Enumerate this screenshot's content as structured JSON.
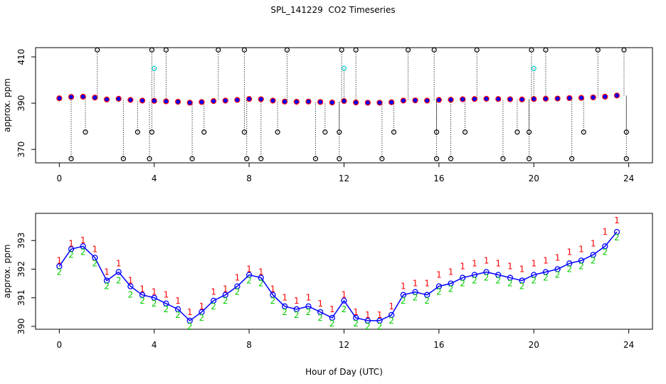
{
  "chart_data": [
    {
      "type": "scatter",
      "title": "SPL_141229  CO2 Timeseries",
      "y_label": "approx. ppm",
      "xlim": [
        -1,
        25
      ],
      "xticks": [
        0,
        4,
        8,
        12,
        16,
        20,
        24
      ],
      "ylim": [
        364.2,
        414
      ],
      "yticks": [
        370,
        390,
        410
      ],
      "x": [
        0,
        0.5,
        1,
        1.5,
        2,
        2.5,
        3,
        3.5,
        4,
        4.5,
        5,
        5.5,
        6,
        6.5,
        7,
        7.5,
        8,
        8.5,
        9,
        9.5,
        10,
        10.5,
        11,
        11.5,
        12,
        12.5,
        13,
        13.5,
        14,
        14.5,
        15,
        15.5,
        16,
        16.5,
        17,
        17.5,
        18,
        18.5,
        19,
        19.5,
        20,
        20.5,
        21,
        21.5,
        22,
        22.5,
        23,
        23.5
      ],
      "series": [
        {
          "color": "#0000ff",
          "edge": "#ff0000",
          "values": [
            392.1,
            392.7,
            392.8,
            392.4,
            391.6,
            391.9,
            391.4,
            391.1,
            391.0,
            390.8,
            390.6,
            390.2,
            390.5,
            390.9,
            391.1,
            391.4,
            391.8,
            391.7,
            391.1,
            390.7,
            390.6,
            390.7,
            390.5,
            390.3,
            390.9,
            390.3,
            390.2,
            390.2,
            390.4,
            391.1,
            391.2,
            391.1,
            391.4,
            391.5,
            391.7,
            391.8,
            391.9,
            391.8,
            391.7,
            391.6,
            391.8,
            391.9,
            392.0,
            392.2,
            392.3,
            392.5,
            392.8,
            393.3
          ]
        },
        {
          "color": "#000000",
          "x": [
            1.6,
            3.9,
            4.5,
            6.7,
            7.8,
            9.6,
            11.9,
            12.5,
            14.7,
            15.8,
            17.6,
            19.9,
            20.5,
            22.7,
            23.8
          ],
          "values": [
            413,
            413,
            413,
            413,
            413,
            413,
            413,
            413,
            413,
            413,
            413,
            413,
            413,
            413,
            413
          ]
        },
        {
          "color": "#000000",
          "x": [
            1.1,
            3.3,
            3.9,
            6.1,
            7.8,
            9.2,
            11.2,
            11.8,
            14.1,
            15.9,
            17.1,
            19.3,
            19.8,
            22.1,
            23.9
          ],
          "values": [
            377.5,
            377.5,
            377.5,
            377.5,
            377.5,
            377.5,
            377.5,
            377.5,
            377.5,
            377.5,
            377.5,
            377.5,
            377.5,
            377.5,
            377.5
          ]
        },
        {
          "color": "#000000",
          "x": [
            0.5,
            2.7,
            3.8,
            5.6,
            7.9,
            8.5,
            10.8,
            11.8,
            13.6,
            15.9,
            16.5,
            18.7,
            19.8,
            21.6,
            23.9
          ],
          "values": [
            366,
            366,
            366,
            366,
            366,
            366,
            366,
            366,
            366,
            366,
            366,
            366,
            366,
            366,
            366
          ]
        },
        {
          "color": "#00cccc",
          "x": [
            4.0,
            12.0,
            20.0
          ],
          "values": [
            405,
            405,
            405
          ]
        }
      ]
    },
    {
      "type": "line",
      "y_label": "approx. ppm",
      "x_label": "Hour of Day (UTC)",
      "xlim": [
        -1,
        25
      ],
      "xticks": [
        0,
        4,
        8,
        12,
        16,
        20,
        24
      ],
      "ylim": [
        389.9,
        393.95
      ],
      "yticks": [
        390,
        391,
        392,
        393
      ],
      "x": [
        0,
        0.5,
        1,
        1.5,
        2,
        2.5,
        3,
        3.5,
        4,
        4.5,
        5,
        5.5,
        6,
        6.5,
        7,
        7.5,
        8,
        8.5,
        9,
        9.5,
        10,
        10.5,
        11,
        11.5,
        12,
        12.5,
        13,
        13.5,
        14,
        14.5,
        15,
        15.5,
        16,
        16.5,
        17,
        17.5,
        18,
        18.5,
        19,
        19.5,
        20,
        20.5,
        21,
        21.5,
        22,
        22.5,
        23,
        23.5
      ],
      "series": [
        {
          "color": "#0000ff",
          "values": [
            392.1,
            392.7,
            392.8,
            392.4,
            391.6,
            391.9,
            391.4,
            391.1,
            391.0,
            390.8,
            390.6,
            390.2,
            390.5,
            390.9,
            391.1,
            391.4,
            391.8,
            391.7,
            391.1,
            390.7,
            390.6,
            390.7,
            390.5,
            390.3,
            390.9,
            390.3,
            390.2,
            390.2,
            390.4,
            391.1,
            391.2,
            391.1,
            391.4,
            391.5,
            391.7,
            391.8,
            391.9,
            391.8,
            391.7,
            391.6,
            391.8,
            391.9,
            392.0,
            392.2,
            392.3,
            392.5,
            392.8,
            393.3
          ]
        },
        {
          "color": "#ff0000",
          "marker": "1",
          "values": [
            392.3,
            392.9,
            393.0,
            392.7,
            391.9,
            392.2,
            391.6,
            391.3,
            391.2,
            391.1,
            390.9,
            390.5,
            390.7,
            391.2,
            391.3,
            391.7,
            392.0,
            391.9,
            391.3,
            391.0,
            390.9,
            391.0,
            390.8,
            390.6,
            391.1,
            390.5,
            390.4,
            390.4,
            390.7,
            391.4,
            391.5,
            391.5,
            391.8,
            391.9,
            392.1,
            392.2,
            392.3,
            392.2,
            392.1,
            392.0,
            392.2,
            392.3,
            392.4,
            392.6,
            392.7,
            392.9,
            393.3,
            393.7
          ]
        },
        {
          "color": "#00cc00",
          "marker": "2",
          "values": [
            391.9,
            392.5,
            392.6,
            392.2,
            391.4,
            391.6,
            391.1,
            390.9,
            390.8,
            390.6,
            390.4,
            390.0,
            390.3,
            390.7,
            390.9,
            391.2,
            391.6,
            391.5,
            390.9,
            390.5,
            390.4,
            390.5,
            390.3,
            390.1,
            390.6,
            390.1,
            390.0,
            390.0,
            390.2,
            390.9,
            391.0,
            390.9,
            391.2,
            391.3,
            391.5,
            391.6,
            391.7,
            391.6,
            391.5,
            391.4,
            391.6,
            391.7,
            391.8,
            392.0,
            392.1,
            392.3,
            392.6,
            393.1
          ]
        }
      ]
    }
  ]
}
